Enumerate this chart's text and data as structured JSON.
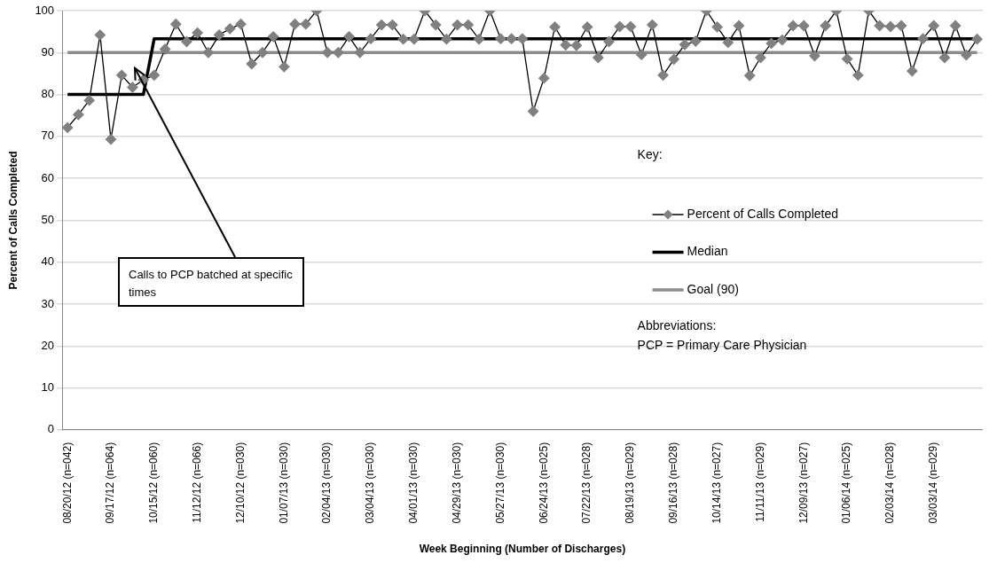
{
  "chart_data": {
    "type": "line",
    "xlabel": "Week Beginning (Number of Discharges)",
    "ylabel": "Percent of Calls Completed",
    "legend_title": "Key:",
    "legend": "right",
    "grid": "y",
    "ylim": [
      0,
      100
    ],
    "yticks": [
      0,
      10,
      20,
      30,
      40,
      50,
      60,
      70,
      80,
      90,
      100
    ],
    "annotations": [
      "Calls to PCP batched at specific times",
      "Abbreviations:\nPCP = Primary Care Physician"
    ],
    "categories": [
      "08/20/12 (n=042)",
      null,
      null,
      null,
      "09/17/12 (n=064)",
      null,
      null,
      null,
      "10/15/12 (n=060)",
      null,
      null,
      null,
      "11/12/12 (n=066)",
      null,
      null,
      null,
      "12/10/12 (n=030)",
      null,
      null,
      null,
      "01/07/13 (n=030)",
      null,
      null,
      null,
      "02/04/13 (n=030)",
      null,
      null,
      null,
      "03/04/13 (n=030)",
      null,
      null,
      null,
      "04/01/13 (n=030)",
      null,
      null,
      null,
      "04/29/13 (n=030)",
      null,
      null,
      null,
      "05/27/13 (n=030)",
      null,
      null,
      null,
      "06/24/13 (n=025)",
      null,
      null,
      null,
      "07/22/13 (n=028)",
      null,
      null,
      null,
      "08/19/13 (n=029)",
      null,
      null,
      null,
      "09/16/13 (n=028)",
      null,
      null,
      null,
      "10/14/13 (n=027)",
      null,
      null,
      null,
      "11/11/13 (n=029)",
      null,
      null,
      null,
      "12/09/13 (n=027)",
      null,
      null,
      null,
      "01/06/14 (n=025)",
      null,
      null,
      null,
      "02/03/14 (n=028)",
      null,
      null,
      null,
      "03/03/14 (n=029)",
      null,
      null,
      null,
      null
    ],
    "series": [
      {
        "name": "Percent of Calls Completed",
        "color": "#808080",
        "marker": "diamond",
        "values": [
          72.1,
          75.2,
          78.6,
          94.2,
          69.3,
          84.6,
          81.7,
          83.5,
          84.6,
          90.8,
          96.8,
          92.6,
          94.7,
          90.0,
          94.2,
          95.7,
          96.8,
          87.3,
          90.0,
          93.8,
          86.6,
          96.8,
          96.8,
          100,
          90,
          90,
          93.8,
          90,
          93.3,
          96.6,
          96.6,
          93.2,
          93.2,
          100,
          96.6,
          93.2,
          96.6,
          96.6,
          93.2,
          100,
          93.3,
          93.3,
          93.3,
          76.0,
          83.9,
          96.1,
          91.8,
          91.7,
          96.1,
          88.8,
          92.6,
          96.2,
          96.2,
          89.5,
          96.6,
          84.6,
          88.4,
          91.9,
          92.7,
          100,
          96.1,
          92.4,
          96.4,
          84.5,
          88.8,
          92.2,
          93.0,
          96.4,
          96.4,
          89.2,
          96.4,
          100,
          88.5,
          84.6,
          100,
          96.4,
          96.2,
          96.4,
          85.6,
          93.3,
          96.4,
          88.8,
          96.4,
          89.4,
          93.2
        ]
      },
      {
        "name": "Median",
        "color": "#000000",
        "marker": "none",
        "values": [
          80,
          80,
          80,
          80,
          80,
          80,
          80,
          80,
          93.3,
          93.3,
          93.3,
          93.3,
          93.3,
          93.3,
          93.3,
          93.3,
          93.3,
          93.3,
          93.3,
          93.3,
          93.3,
          93.3,
          93.3,
          93.3,
          93.3,
          93.3,
          93.3,
          93.3,
          93.3,
          93.3,
          93.3,
          93.3,
          93.3,
          93.3,
          93.3,
          93.3,
          93.3,
          93.3,
          93.3,
          93.3,
          93.3,
          93.3,
          93.3,
          93.3,
          93.3,
          93.3,
          93.3,
          93.3,
          93.3,
          93.3,
          93.3,
          93.3,
          93.3,
          93.3,
          93.3,
          93.3,
          93.3,
          93.3,
          93.3,
          93.3,
          93.3,
          93.3,
          93.3,
          93.3,
          93.3,
          93.3,
          93.3,
          93.3,
          93.3,
          93.3,
          93.3,
          93.3,
          93.3,
          93.3,
          93.3,
          93.3,
          93.3,
          93.3,
          93.3,
          93.3,
          93.3,
          93.3,
          93.3,
          93.3,
          93.3
        ]
      },
      {
        "name": "Goal (90)",
        "color": "#8c8c8c",
        "marker": "none",
        "values": [
          90,
          90,
          90,
          90,
          90,
          90,
          90,
          90,
          90,
          90,
          90,
          90,
          90,
          90,
          90,
          90,
          90,
          90,
          90,
          90,
          90,
          90,
          90,
          90,
          90,
          90,
          90,
          90,
          90,
          90,
          90,
          90,
          90,
          90,
          90,
          90,
          90,
          90,
          90,
          90,
          90,
          90,
          90,
          90,
          90,
          90,
          90,
          90,
          90,
          90,
          90,
          90,
          90,
          90,
          90,
          90,
          90,
          90,
          90,
          90,
          90,
          90,
          90,
          90,
          90,
          90,
          90,
          90,
          90,
          90,
          90,
          90,
          90,
          90,
          90,
          90,
          90,
          90,
          90,
          90,
          90,
          90,
          90,
          90,
          90
        ]
      }
    ]
  }
}
